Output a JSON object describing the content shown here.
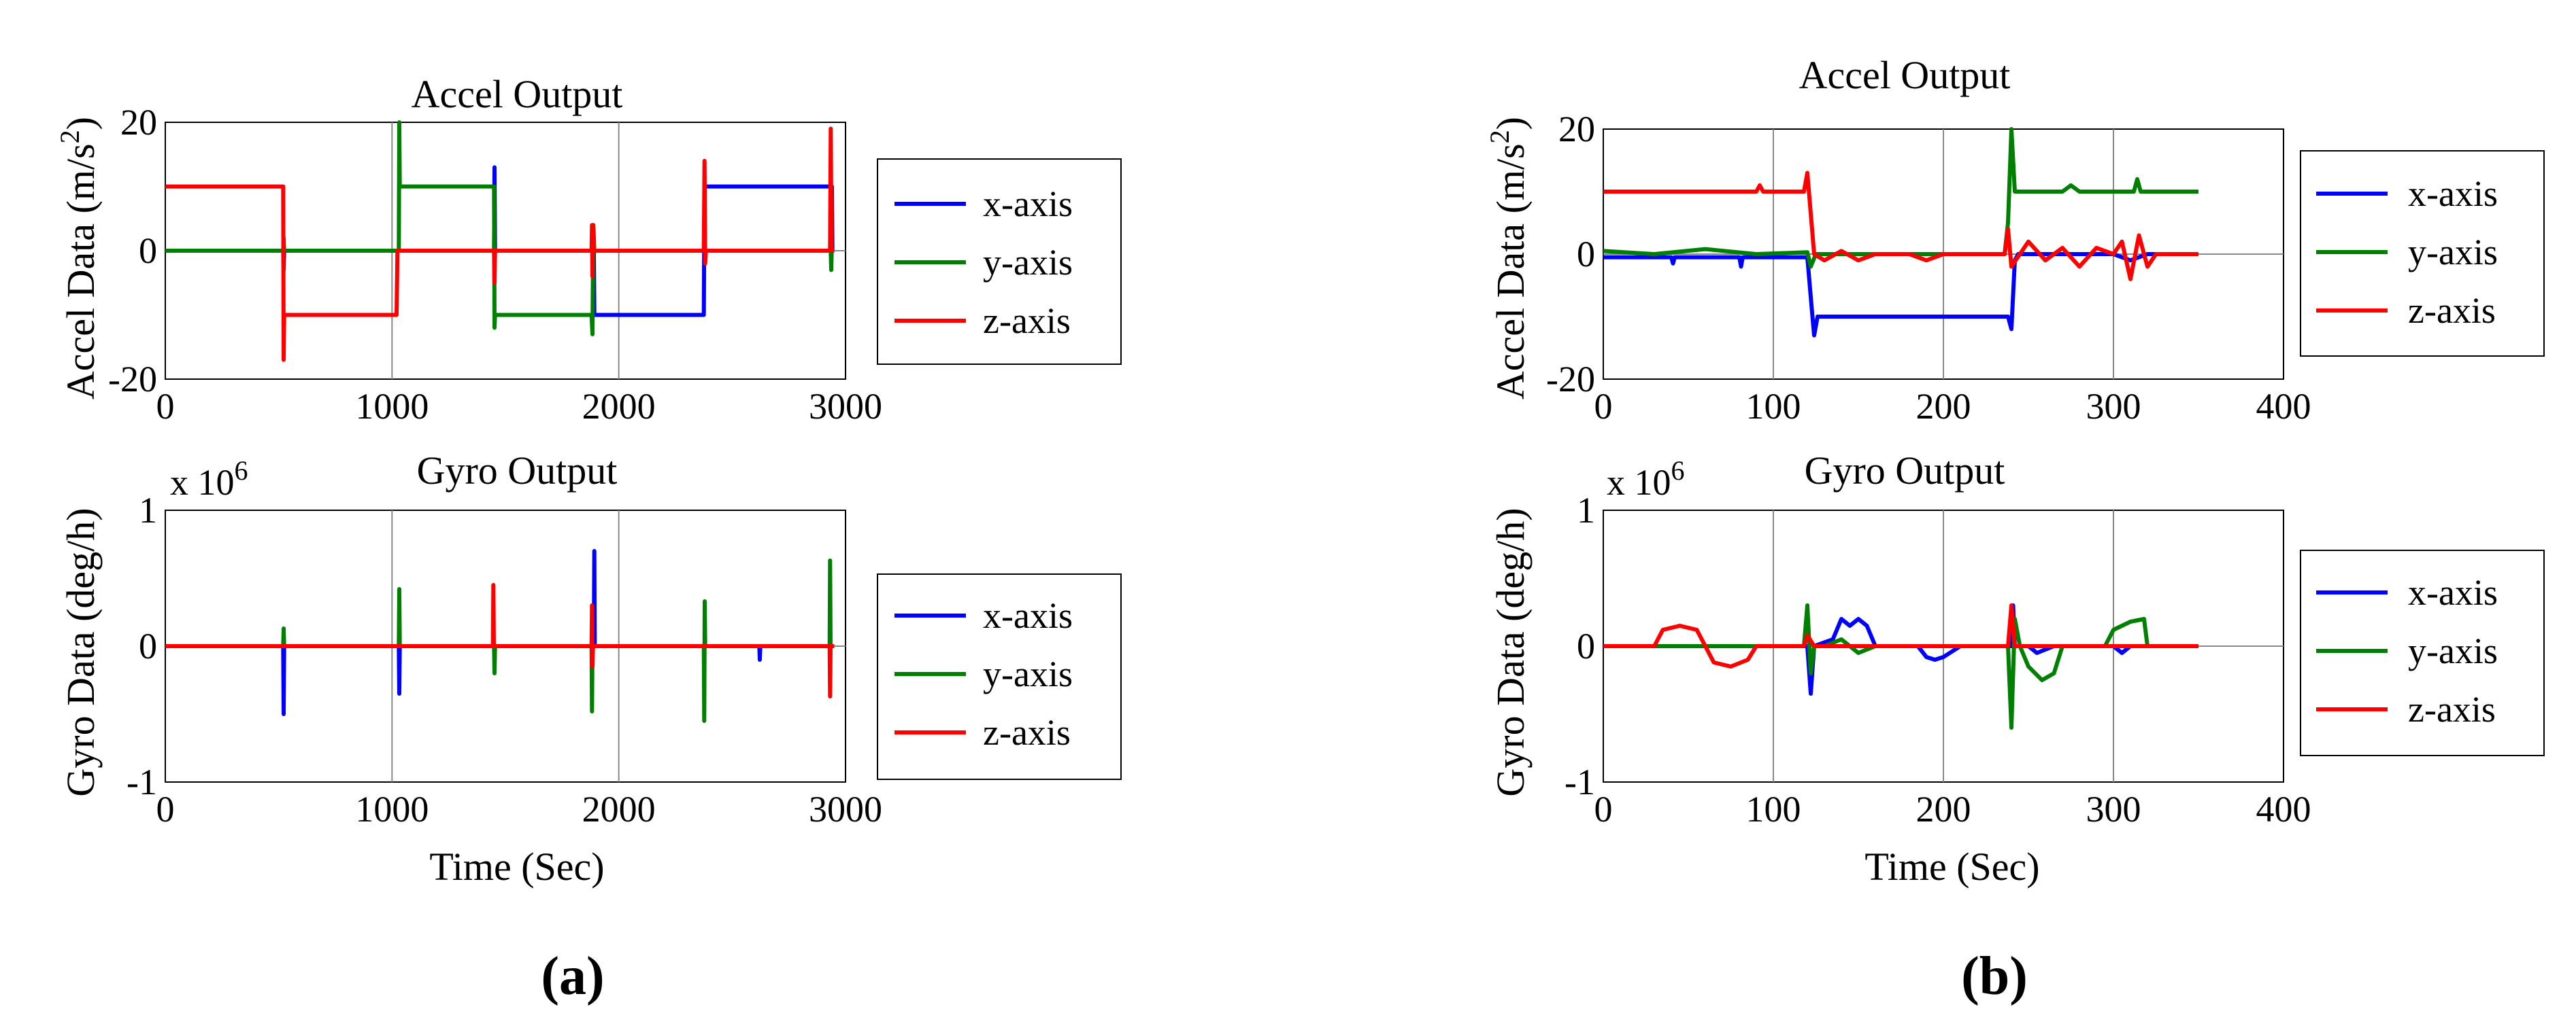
{
  "figure": {
    "colors": {
      "x": "#0000ff",
      "y": "#008000",
      "z": "#ff0000"
    },
    "panels": [
      {
        "label": "(a)",
        "label_text": "a"
      },
      {
        "label": "(b)",
        "label_text": "b"
      }
    ]
  },
  "chart_data": [
    {
      "id": "a-accel",
      "type": "line",
      "title": "Accel Output",
      "xlabel": "",
      "ylabel": "Accel Data (m/s",
      "ylabel_sup": "2",
      "ylabel_end": ")",
      "xlim": [
        0,
        3000
      ],
      "ylim": [
        -20,
        20
      ],
      "xticks": [
        0,
        1000,
        2000,
        3000
      ],
      "yticks": [
        -20,
        0,
        20
      ],
      "exponent": null,
      "legend": [
        "x-axis",
        "y-axis",
        "z-axis"
      ],
      "series": [
        {
          "name": "x-axis",
          "color": "#0000ff",
          "points": [
            [
              0,
              0
            ],
            [
              520,
              0
            ],
            [
              522,
              -3
            ],
            [
              524,
              0
            ],
            [
              1450,
              0
            ],
            [
              1452,
              13
            ],
            [
              1454,
              0
            ],
            [
              1890,
              0
            ],
            [
              1892,
              -10
            ],
            [
              2375,
              -10
            ],
            [
              2378,
              10
            ],
            [
              2940,
              10
            ],
            [
              2942,
              0
            ],
            [
              2950,
              0
            ]
          ]
        },
        {
          "name": "y-axis",
          "color": "#008000",
          "points": [
            [
              0,
              0
            ],
            [
              520,
              0
            ],
            [
              522,
              2
            ],
            [
              524,
              0
            ],
            [
              1030,
              0
            ],
            [
              1032,
              20
            ],
            [
              1034,
              10
            ],
            [
              1450,
              10
            ],
            [
              1452,
              -12
            ],
            [
              1454,
              -10
            ],
            [
              1880,
              -10
            ],
            [
              1884,
              -13
            ],
            [
              1888,
              4
            ],
            [
              1892,
              0
            ],
            [
              2375,
              0
            ],
            [
              2378,
              2
            ],
            [
              2380,
              0
            ],
            [
              2935,
              0
            ],
            [
              2937,
              -3
            ],
            [
              2939,
              0
            ],
            [
              2950,
              0
            ]
          ]
        },
        {
          "name": "z-axis",
          "color": "#ff0000",
          "points": [
            [
              0,
              10
            ],
            [
              520,
              10
            ],
            [
              522,
              -17
            ],
            [
              524,
              -10
            ],
            [
              1020,
              -10
            ],
            [
              1024,
              0
            ],
            [
              1450,
              0
            ],
            [
              1452,
              -5
            ],
            [
              1454,
              0
            ],
            [
              1880,
              0
            ],
            [
              1882,
              4
            ],
            [
              1884,
              -4
            ],
            [
              1886,
              4
            ],
            [
              1890,
              0
            ],
            [
              2375,
              0
            ],
            [
              2378,
              14
            ],
            [
              2381,
              -2
            ],
            [
              2384,
              0
            ],
            [
              2932,
              0
            ],
            [
              2935,
              19
            ],
            [
              2938,
              0
            ],
            [
              2950,
              0
            ]
          ]
        }
      ]
    },
    {
      "id": "a-gyro",
      "type": "line",
      "title": "Gyro Output",
      "xlabel": "Time (Sec)",
      "ylabel": "Gyro Data (deg/h)",
      "ylabel_sup": "",
      "ylabel_end": "",
      "xlim": [
        0,
        3000
      ],
      "ylim": [
        -1,
        1
      ],
      "xticks": [
        0,
        1000,
        2000,
        3000
      ],
      "yticks": [
        -1,
        0,
        1
      ],
      "exponent": {
        "base": "x 10",
        "power": "6"
      },
      "legend": [
        "x-axis",
        "y-axis",
        "z-axis"
      ],
      "series": [
        {
          "name": "x-axis",
          "color": "#0000ff",
          "points": [
            [
              0,
              0
            ],
            [
              520,
              0
            ],
            [
              522,
              -0.5
            ],
            [
              524,
              0
            ],
            [
              1030,
              0
            ],
            [
              1032,
              -0.35
            ],
            [
              1034,
              0
            ],
            [
              1890,
              0
            ],
            [
              1892,
              0.7
            ],
            [
              1894,
              0
            ],
            [
              2620,
              0
            ],
            [
              2622,
              -0.1
            ],
            [
              2624,
              0
            ],
            [
              2950,
              0
            ]
          ]
        },
        {
          "name": "y-axis",
          "color": "#008000",
          "points": [
            [
              0,
              0
            ],
            [
              520,
              0
            ],
            [
              522,
              0.13
            ],
            [
              524,
              0
            ],
            [
              1030,
              0
            ],
            [
              1032,
              0.42
            ],
            [
              1034,
              0
            ],
            [
              1450,
              0
            ],
            [
              1452,
              -0.2
            ],
            [
              1454,
              0
            ],
            [
              1880,
              0
            ],
            [
              1882,
              -0.48
            ],
            [
              1884,
              0
            ],
            [
              2375,
              0
            ],
            [
              2377,
              -0.55
            ],
            [
              2379,
              0.33
            ],
            [
              2381,
              0
            ],
            [
              2930,
              0
            ],
            [
              2932,
              0.63
            ],
            [
              2934,
              0
            ],
            [
              2950,
              0
            ]
          ]
        },
        {
          "name": "z-axis",
          "color": "#ff0000",
          "points": [
            [
              0,
              0
            ],
            [
              1445,
              0
            ],
            [
              1447,
              0.45
            ],
            [
              1449,
              0
            ],
            [
              1880,
              0
            ],
            [
              1882,
              0.3
            ],
            [
              1884,
              -0.15
            ],
            [
              1886,
              0
            ],
            [
              2930,
              0
            ],
            [
              2932,
              -0.37
            ],
            [
              2934,
              0
            ],
            [
              2950,
              0
            ]
          ]
        }
      ]
    },
    {
      "id": "b-accel",
      "type": "line",
      "title": "Accel Output",
      "xlabel": "",
      "ylabel": "Accel Data (m/s",
      "ylabel_sup": "2",
      "ylabel_end": ")",
      "xlim": [
        0,
        400
      ],
      "ylim": [
        -20,
        20
      ],
      "xticks": [
        0,
        100,
        200,
        300,
        400
      ],
      "yticks": [
        -20,
        0,
        20
      ],
      "exponent": null,
      "legend": [
        "x-axis",
        "y-axis",
        "z-axis"
      ],
      "series": [
        {
          "name": "x-axis",
          "color": "#0000ff",
          "points": [
            [
              0,
              -0.5
            ],
            [
              40,
              -0.5
            ],
            [
              41,
              -1.5
            ],
            [
              42,
              -0.5
            ],
            [
              80,
              -0.5
            ],
            [
              81,
              -2
            ],
            [
              82,
              -0.5
            ],
            [
              120,
              -0.5
            ],
            [
              123,
              -10
            ],
            [
              124,
              -13
            ],
            [
              126,
              -10
            ],
            [
              238,
              -10
            ],
            [
              240,
              -12
            ],
            [
              242,
              -1
            ],
            [
              244,
              0
            ],
            [
              300,
              0
            ],
            [
              310,
              -1
            ],
            [
              320,
              0
            ],
            [
              350,
              0
            ]
          ]
        },
        {
          "name": "y-axis",
          "color": "#008000",
          "points": [
            [
              0,
              0.5
            ],
            [
              30,
              0
            ],
            [
              60,
              0.8
            ],
            [
              90,
              0
            ],
            [
              120,
              0.3
            ],
            [
              122,
              -2
            ],
            [
              125,
              0
            ],
            [
              200,
              0
            ],
            [
              236,
              0
            ],
            [
              238,
              5
            ],
            [
              240,
              20
            ],
            [
              242,
              10
            ],
            [
              270,
              10
            ],
            [
              275,
              11
            ],
            [
              280,
              10
            ],
            [
              312,
              10
            ],
            [
              314,
              12
            ],
            [
              316,
              10
            ],
            [
              350,
              10
            ]
          ]
        },
        {
          "name": "z-axis",
          "color": "#ff0000",
          "points": [
            [
              0,
              10
            ],
            [
              90,
              10
            ],
            [
              92,
              11
            ],
            [
              94,
              10
            ],
            [
              118,
              10
            ],
            [
              120,
              13
            ],
            [
              124,
              0
            ],
            [
              130,
              -1
            ],
            [
              140,
              0.5
            ],
            [
              150,
              -1
            ],
            [
              160,
              0
            ],
            [
              180,
              0
            ],
            [
              190,
              -1
            ],
            [
              200,
              0
            ],
            [
              220,
              0
            ],
            [
              236,
              0
            ],
            [
              238,
              4
            ],
            [
              240,
              -2
            ],
            [
              250,
              2
            ],
            [
              260,
              -1
            ],
            [
              270,
              1
            ],
            [
              280,
              -2
            ],
            [
              290,
              1
            ],
            [
              300,
              0
            ],
            [
              305,
              2
            ],
            [
              310,
              -4
            ],
            [
              315,
              3
            ],
            [
              320,
              -2
            ],
            [
              325,
              0
            ],
            [
              350,
              0
            ]
          ]
        }
      ]
    },
    {
      "id": "b-gyro",
      "type": "line",
      "title": "Gyro Output",
      "xlabel": "Time (Sec)",
      "ylabel": "Gyro Data (deg/h)",
      "ylabel_sup": "",
      "ylabel_end": "",
      "xlim": [
        0,
        400
      ],
      "ylim": [
        -1,
        1
      ],
      "xticks": [
        0,
        100,
        200,
        300,
        400
      ],
      "yticks": [
        -1,
        0,
        1
      ],
      "exponent": {
        "base": "x 10",
        "power": "6"
      },
      "legend": [
        "x-axis",
        "y-axis",
        "z-axis"
      ],
      "series": [
        {
          "name": "x-axis",
          "color": "#0000ff",
          "points": [
            [
              0,
              0
            ],
            [
              120,
              0
            ],
            [
              122,
              -0.35
            ],
            [
              124,
              0
            ],
            [
              135,
              0.05
            ],
            [
              140,
              0.2
            ],
            [
              145,
              0.15
            ],
            [
              150,
              0.2
            ],
            [
              155,
              0.15
            ],
            [
              160,
              0
            ],
            [
              185,
              0
            ],
            [
              190,
              -0.08
            ],
            [
              195,
              -0.1
            ],
            [
              200,
              -0.08
            ],
            [
              210,
              0
            ],
            [
              240,
              0
            ],
            [
              241,
              0.3
            ],
            [
              242,
              0
            ],
            [
              250,
              0
            ],
            [
              255,
              -0.05
            ],
            [
              265,
              0
            ],
            [
              300,
              0
            ],
            [
              305,
              -0.05
            ],
            [
              310,
              0
            ],
            [
              350,
              0
            ]
          ]
        },
        {
          "name": "y-axis",
          "color": "#008000",
          "points": [
            [
              0,
              0
            ],
            [
              118,
              0
            ],
            [
              120,
              0.3
            ],
            [
              122,
              -0.2
            ],
            [
              124,
              0
            ],
            [
              130,
              0
            ],
            [
              140,
              0.05
            ],
            [
              150,
              -0.05
            ],
            [
              160,
              0
            ],
            [
              238,
              0
            ],
            [
              240,
              -0.6
            ],
            [
              242,
              0.2
            ],
            [
              245,
              0
            ],
            [
              250,
              -0.15
            ],
            [
              258,
              -0.25
            ],
            [
              265,
              -0.2
            ],
            [
              270,
              0
            ],
            [
              295,
              0
            ],
            [
              300,
              0.12
            ],
            [
              310,
              0.18
            ],
            [
              318,
              0.2
            ],
            [
              320,
              0
            ],
            [
              350,
              0
            ]
          ]
        },
        {
          "name": "z-axis",
          "color": "#ff0000",
          "points": [
            [
              0,
              0
            ],
            [
              30,
              0
            ],
            [
              35,
              0.12
            ],
            [
              45,
              0.15
            ],
            [
              55,
              0.12
            ],
            [
              60,
              0
            ],
            [
              65,
              -0.12
            ],
            [
              75,
              -0.15
            ],
            [
              85,
              -0.1
            ],
            [
              90,
              0
            ],
            [
              118,
              0
            ],
            [
              120,
              0.08
            ],
            [
              124,
              0
            ],
            [
              238,
              0
            ],
            [
              240,
              0.3
            ],
            [
              242,
              0
            ],
            [
              350,
              0
            ]
          ]
        }
      ]
    }
  ]
}
